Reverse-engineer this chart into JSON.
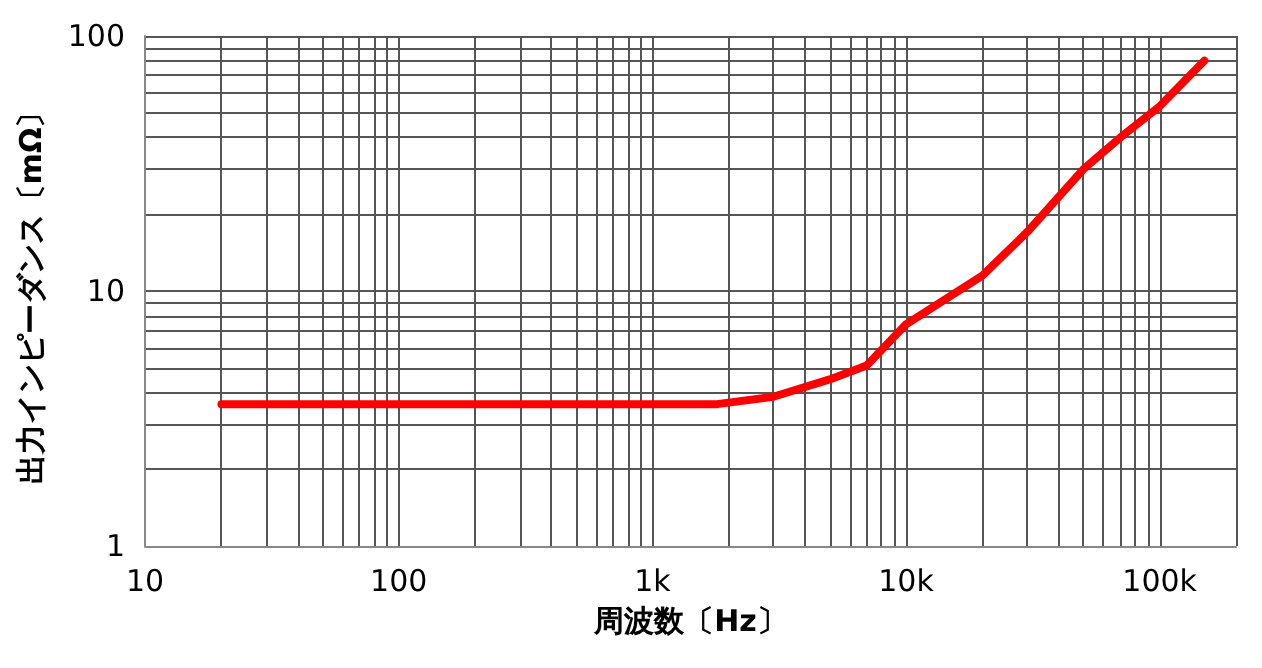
{
  "chart_data": {
    "type": "line",
    "xlabel": "周波数〔Hz〕",
    "ylabel": "出力インピーダンス〔mΩ〕",
    "log": "xy",
    "grid": true,
    "marker": "none",
    "line_style": "solid",
    "xlim": [
      10,
      200000
    ],
    "xticks": [
      10,
      {
        "value": 20,
        "label": null
      },
      {
        "value": 30,
        "label": null
      },
      {
        "value": 40,
        "label": null
      },
      {
        "value": 50,
        "label": null
      },
      {
        "value": 60,
        "label": null
      },
      {
        "value": 70,
        "label": null
      },
      {
        "value": 80,
        "label": null
      },
      {
        "value": 90,
        "label": null
      },
      100,
      {
        "value": 200,
        "label": null
      },
      {
        "value": 300,
        "label": null
      },
      {
        "value": 400,
        "label": null
      },
      {
        "value": 500,
        "label": null
      },
      {
        "value": 600,
        "label": null
      },
      {
        "value": 700,
        "label": null
      },
      {
        "value": 800,
        "label": null
      },
      {
        "value": 900,
        "label": null
      },
      {
        "value": 1000,
        "label": "1k"
      },
      {
        "value": 2000,
        "label": null
      },
      {
        "value": 3000,
        "label": null
      },
      {
        "value": 4000,
        "label": null
      },
      {
        "value": 5000,
        "label": null
      },
      {
        "value": 6000,
        "label": null
      },
      {
        "value": 7000,
        "label": null
      },
      {
        "value": 8000,
        "label": null
      },
      {
        "value": 9000,
        "label": null
      },
      {
        "value": 10000,
        "label": "10k"
      },
      {
        "value": 20000,
        "label": null
      },
      {
        "value": 30000,
        "label": null
      },
      {
        "value": 40000,
        "label": null
      },
      {
        "value": 50000,
        "label": null
      },
      {
        "value": 60000,
        "label": null
      },
      {
        "value": 70000,
        "label": null
      },
      {
        "value": 80000,
        "label": null
      },
      {
        "value": 90000,
        "label": null
      },
      {
        "value": 100000,
        "label": "100k"
      },
      {
        "value": 200000,
        "label": null
      }
    ],
    "ylim": [
      1,
      100
    ],
    "yticks": [
      1,
      {
        "value": 2,
        "label": null
      },
      {
        "value": 3,
        "label": null
      },
      {
        "value": 4,
        "label": null
      },
      {
        "value": 5,
        "label": null
      },
      {
        "value": 6,
        "label": null
      },
      {
        "value": 7,
        "label": null
      },
      {
        "value": 8,
        "label": null
      },
      {
        "value": 9,
        "label": null
      },
      10,
      {
        "value": 20,
        "label": null
      },
      {
        "value": 30,
        "label": null
      },
      {
        "value": 40,
        "label": null
      },
      {
        "value": 50,
        "label": null
      },
      {
        "value": 60,
        "label": null
      },
      {
        "value": 70,
        "label": null
      },
      {
        "value": 80,
        "label": null
      },
      {
        "value": 90,
        "label": null
      },
      100
    ],
    "series": [
      {
        "color": "#ff0000",
        "x": [
          20,
          1800,
          3000,
          5000,
          7000,
          10000,
          20000,
          30000,
          50000,
          70000,
          100000,
          150000
        ],
        "values": [
          3.6,
          3.6,
          3.85,
          4.5,
          5.1,
          7.4,
          11.5,
          17,
          30,
          40,
          53,
          80
        ]
      }
    ]
  }
}
